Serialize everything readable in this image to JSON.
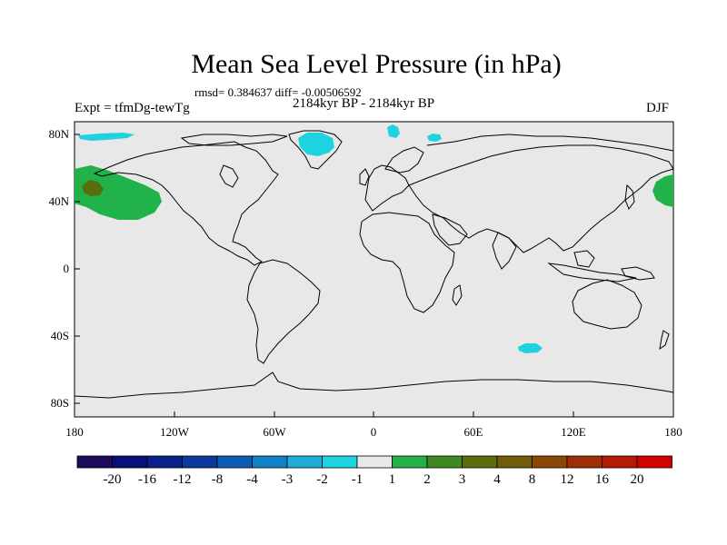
{
  "title": "Mean Sea Level Pressure (in hPa)",
  "stats": "rmsd= 0.384637 diff= -0.00506592",
  "period": "2184kyr BP - 2184kyr BP",
  "experiment": "Expt = tfmDg-tewTg",
  "season": "DJF",
  "lat_labels": [
    "80N",
    "40N",
    "0",
    "40S",
    "80S"
  ],
  "lon_labels": [
    "180",
    "120W",
    "60W",
    "0",
    "60E",
    "120E",
    "180"
  ],
  "colorbar": {
    "labels": [
      "-20",
      "-16",
      "-12",
      "-8",
      "-4",
      "-3",
      "-2",
      "-1",
      "1",
      "2",
      "3",
      "4",
      "8",
      "12",
      "16",
      "20"
    ],
    "colors": [
      "#1e0a5c",
      "#0a0f78",
      "#0a2088",
      "#0c3a9c",
      "#0c5cb4",
      "#1182c8",
      "#1aaed8",
      "#1ed2e0",
      "#e8e8e8",
      "#21b24a",
      "#3f8a20",
      "#5a6e10",
      "#735c08",
      "#8c4606",
      "#a02e04",
      "#b41a04",
      "#d30000"
    ]
  },
  "background_color": "#e8e8e8",
  "anomaly_regions": [
    {
      "name": "north-pacific-positive",
      "level": "2"
    },
    {
      "name": "north-pacific-core",
      "level": "4"
    },
    {
      "name": "west-pacific-positive",
      "level": "2"
    },
    {
      "name": "greenland-negative",
      "level": "-1"
    },
    {
      "name": "svalbard-negative",
      "level": "-1"
    },
    {
      "name": "barents-negative",
      "level": "-1"
    },
    {
      "name": "canadian-arctic-negative",
      "level": "-1"
    },
    {
      "name": "southern-indian-negative",
      "level": "-1"
    }
  ]
}
